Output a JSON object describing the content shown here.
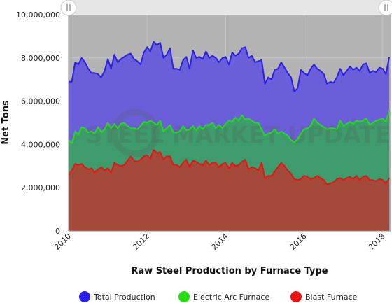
{
  "colors": {
    "plot_background": "#b3b3b3",
    "total_fill": "#6a5fd8",
    "total_line": "#2a1ff2",
    "eaf_fill": "#3d9b6c",
    "eaf_line": "#22dd11",
    "bf_fill": "#a34a3a",
    "bf_line": "#ee1111",
    "navigator": "#e6e6e6"
  },
  "watermark": {
    "text": "STEEL MARKET UPDATE"
  },
  "chart_data": {
    "type": "area",
    "title": "",
    "xlabel": "Raw Steel Production by Furnace Type",
    "ylabel": "Net Tons",
    "xlim": [
      2010.0,
      2018.2
    ],
    "ylim": [
      0,
      10000000
    ],
    "x_ticks": [
      2010,
      2012,
      2014,
      2016,
      2018
    ],
    "x_tick_labels": [
      "2010",
      "2012",
      "2014",
      "2016",
      "2018"
    ],
    "y_ticks": [
      0,
      2000000,
      4000000,
      6000000,
      8000000,
      10000000
    ],
    "y_tick_labels": [
      "0",
      "2,000,000",
      "4,000,000",
      "6,000,000",
      "8,000,000",
      "10,000,000"
    ],
    "grid": true,
    "legend_position": "bottom",
    "x": [
      2010.0,
      2010.083,
      2010.167,
      2010.25,
      2010.333,
      2010.417,
      2010.5,
      2010.583,
      2010.667,
      2010.75,
      2010.833,
      2010.917,
      2011.0,
      2011.083,
      2011.167,
      2011.25,
      2011.333,
      2011.417,
      2011.5,
      2011.583,
      2011.667,
      2011.75,
      2011.833,
      2011.917,
      2012.0,
      2012.083,
      2012.167,
      2012.25,
      2012.333,
      2012.417,
      2012.5,
      2012.583,
      2012.667,
      2012.75,
      2012.833,
      2012.917,
      2013.0,
      2013.083,
      2013.167,
      2013.25,
      2013.333,
      2013.417,
      2013.5,
      2013.583,
      2013.667,
      2013.75,
      2013.833,
      2013.917,
      2014.0,
      2014.083,
      2014.167,
      2014.25,
      2014.333,
      2014.417,
      2014.5,
      2014.583,
      2014.667,
      2014.75,
      2014.833,
      2014.917,
      2015.0,
      2015.083,
      2015.167,
      2015.25,
      2015.333,
      2015.417,
      2015.5,
      2015.583,
      2015.667,
      2015.75,
      2015.833,
      2015.917,
      2016.0,
      2016.083,
      2016.167,
      2016.25,
      2016.333,
      2016.417,
      2016.5,
      2016.583,
      2016.667,
      2016.75,
      2016.833,
      2016.917,
      2017.0,
      2017.083,
      2017.167,
      2017.25,
      2017.333,
      2017.417,
      2017.5,
      2017.583,
      2017.667,
      2017.75,
      2017.833,
      2017.917,
      2018.0,
      2018.083,
      2018.167
    ],
    "series": [
      {
        "name": "Total Production",
        "values": [
          6900000,
          6900000,
          7800000,
          7700000,
          8000000,
          7800000,
          7500000,
          7300000,
          7300000,
          7250000,
          7100000,
          7400000,
          7950000,
          7500000,
          8150000,
          7800000,
          7950000,
          8050000,
          8150000,
          8200000,
          7950000,
          7850000,
          7700000,
          8250000,
          8500000,
          8300000,
          8750000,
          8600000,
          8700000,
          8000000,
          8150000,
          8450000,
          7500000,
          7500000,
          7450000,
          7900000,
          8050000,
          7500000,
          8350000,
          8000000,
          8050000,
          7950000,
          8300000,
          8000000,
          8100000,
          8000000,
          7800000,
          8000000,
          8050000,
          7700000,
          8250000,
          8100000,
          8200000,
          8450000,
          8500000,
          8000000,
          8100000,
          7800000,
          7850000,
          7900000,
          6800000,
          7100000,
          7000000,
          7450000,
          7500000,
          7800000,
          7550000,
          7300000,
          7100000,
          6450000,
          6600000,
          7450000,
          7300000,
          7200000,
          7500000,
          7700000,
          7500000,
          7400000,
          7250000,
          6800000,
          6900000,
          6850000,
          7100000,
          7500000,
          7200000,
          7400000,
          7600000,
          7450000,
          7550000,
          7400000,
          7700000,
          7750000,
          7300000,
          7400000,
          7350000,
          7550000,
          7500000,
          7250000,
          8050000
        ]
      },
      {
        "name": "Electric Arc Furnace",
        "values": [
          4200000,
          4050000,
          4600000,
          4450000,
          4800000,
          4750000,
          4550000,
          4600000,
          4500000,
          4800000,
          4550000,
          4700000,
          5000000,
          4750000,
          4950000,
          4750000,
          4950000,
          5000000,
          4850000,
          4750000,
          4750000,
          4700000,
          4850000,
          5050000,
          5000000,
          5100000,
          5000000,
          4900000,
          5100000,
          4600000,
          4750000,
          4900000,
          4550000,
          4550000,
          4600000,
          4850000,
          4650000,
          4700000,
          4850000,
          4650000,
          4850000,
          4700000,
          4900000,
          4900000,
          5000000,
          4750000,
          4900000,
          4750000,
          4950000,
          5100000,
          5050000,
          5250000,
          5100000,
          5350000,
          5150000,
          5200000,
          5100000,
          5000000,
          5000000,
          4700000,
          4400000,
          4500000,
          4550000,
          4700000,
          4500000,
          4600000,
          4500000,
          4400000,
          4200000,
          4100000,
          4250000,
          4500000,
          4700000,
          4750000,
          4850000,
          5200000,
          5000000,
          4900000,
          4800000,
          4700000,
          4750000,
          4750000,
          4700000,
          5100000,
          4850000,
          4950000,
          5050000,
          4950000,
          5100000,
          5050000,
          5100000,
          5200000,
          4900000,
          5000000,
          5100000,
          5150000,
          5200000,
          5050000,
          5550000
        ]
      },
      {
        "name": "Blast Furnace",
        "values": [
          2600000,
          2800000,
          3100000,
          3050000,
          3100000,
          2950000,
          2850000,
          2900000,
          2700000,
          2850000,
          2950000,
          2800000,
          2900000,
          2700000,
          3150000,
          3050000,
          3000000,
          3050000,
          3250000,
          3450000,
          3250000,
          3200000,
          3300000,
          3450000,
          3500000,
          3350000,
          3750000,
          3600000,
          3650000,
          3300000,
          3450000,
          3450000,
          3050000,
          3050000,
          2950000,
          3150000,
          3300000,
          2950000,
          3250000,
          3200000,
          3100000,
          3050000,
          3250000,
          3050000,
          3150000,
          3150000,
          2950000,
          3100000,
          3150000,
          2900000,
          3150000,
          3000000,
          3050000,
          3200000,
          3300000,
          2850000,
          2950000,
          2900000,
          2800000,
          3150000,
          2450000,
          2550000,
          2550000,
          2750000,
          2950000,
          3150000,
          3000000,
          2800000,
          2650000,
          2400000,
          2350000,
          2400000,
          2550000,
          2500000,
          2400000,
          2450000,
          2550000,
          2450000,
          2350000,
          2150000,
          2200000,
          2250000,
          2400000,
          2450000,
          2350000,
          2450000,
          2500000,
          2400000,
          2550000,
          2350000,
          2500000,
          2550000,
          2350000,
          2350000,
          2300000,
          2400000,
          2350000,
          2200000,
          2450000
        ]
      }
    ]
  }
}
